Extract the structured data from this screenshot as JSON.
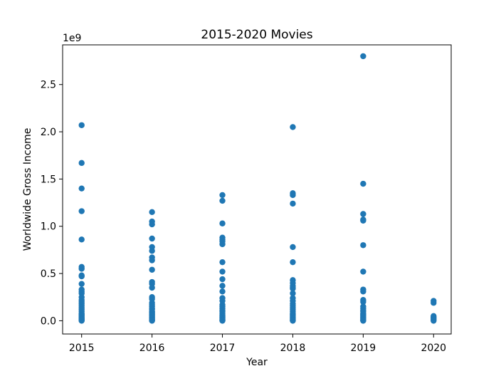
{
  "chart_data": {
    "type": "scatter",
    "title": "2015-2020 Movies",
    "xlabel": "Year",
    "ylabel": "Worldwide Gross Income",
    "y_offset_label": "1e9",
    "xlim": [
      2014.73,
      2020.25
    ],
    "ylim": [
      -0.14,
      2.92
    ],
    "y_scale_factor": 1000000000,
    "x_ticks": [
      2015,
      2016,
      2017,
      2018,
      2019,
      2020
    ],
    "x_tick_labels": [
      "2015",
      "2016",
      "2017",
      "2018",
      "2019",
      "2020"
    ],
    "y_ticks": [
      0.0,
      0.5,
      1.0,
      1.5,
      2.0,
      2.5
    ],
    "y_tick_labels": [
      "0.0",
      "0.5",
      "1.0",
      "1.5",
      "2.0",
      "2.5"
    ],
    "grid": false,
    "marker_color": "#1f77b4",
    "series": [
      {
        "points_by_year": [
          {
            "x": 2015,
            "y": [
              2.07,
              1.67,
              1.4,
              1.16,
              0.86,
              0.57,
              0.55,
              0.48,
              0.47,
              0.39,
              0.33,
              0.31,
              0.29,
              0.25,
              0.22,
              0.2,
              0.18,
              0.16,
              0.14,
              0.12,
              0.1,
              0.08,
              0.07,
              0.06,
              0.05,
              0.04,
              0.03,
              0.02,
              0.015,
              0.01,
              0.005,
              0.0
            ]
          },
          {
            "x": 2016,
            "y": [
              1.15,
              1.05,
              1.02,
              0.87,
              0.78,
              0.74,
              0.67,
              0.64,
              0.54,
              0.41,
              0.39,
              0.35,
              0.25,
              0.23,
              0.19,
              0.17,
              0.15,
              0.13,
              0.12,
              0.1,
              0.09,
              0.08,
              0.07,
              0.06,
              0.05,
              0.04,
              0.03,
              0.02,
              0.01,
              0.005,
              0.0
            ]
          },
          {
            "x": 2017,
            "y": [
              1.33,
              1.27,
              1.03,
              0.88,
              0.86,
              0.84,
              0.81,
              0.62,
              0.52,
              0.44,
              0.37,
              0.31,
              0.24,
              0.21,
              0.17,
              0.15,
              0.13,
              0.11,
              0.1,
              0.08,
              0.06,
              0.05,
              0.04,
              0.03,
              0.02,
              0.01,
              0.005,
              0.0
            ]
          },
          {
            "x": 2018,
            "y": [
              2.05,
              1.35,
              1.33,
              1.24,
              0.78,
              0.62,
              0.43,
              0.4,
              0.37,
              0.35,
              0.34,
              0.29,
              0.24,
              0.21,
              0.18,
              0.16,
              0.14,
              0.12,
              0.1,
              0.08,
              0.07,
              0.06,
              0.05,
              0.04,
              0.03,
              0.02,
              0.01,
              0.005,
              0.0
            ]
          },
          {
            "x": 2019,
            "y": [
              2.8,
              1.45,
              1.13,
              1.07,
              1.06,
              0.8,
              0.52,
              0.33,
              0.31,
              0.22,
              0.2,
              0.15,
              0.13,
              0.11,
              0.1,
              0.08,
              0.07,
              0.06,
              0.05,
              0.04,
              0.03,
              0.02,
              0.01,
              0.005,
              0.0
            ]
          },
          {
            "x": 2020,
            "y": [
              0.21,
              0.19,
              0.05,
              0.04,
              0.03,
              0.02,
              0.01,
              0.0
            ]
          }
        ]
      }
    ]
  }
}
